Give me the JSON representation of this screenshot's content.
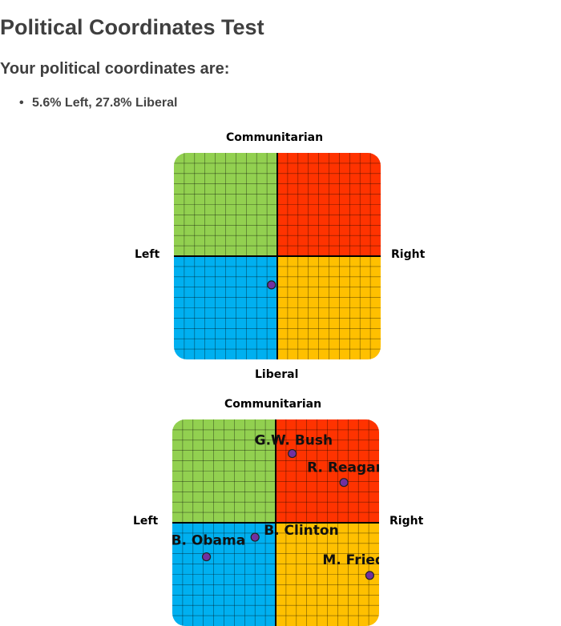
{
  "page": {
    "title": "Political Coordinates Test",
    "subtitle": "Your political coordinates are:",
    "result": "5.6% Left, 27.8% Liberal"
  },
  "axes": {
    "top": "Communitarian",
    "bottom": "Liberal",
    "left": "Left",
    "right": "Right"
  },
  "colors": {
    "top_left": "#92d050",
    "top_right": "#ff3300",
    "bottom_left": "#00b0f0",
    "bottom_right": "#ffc000",
    "point": "#7030a0"
  },
  "user_point": {
    "x_pct": -5.6,
    "y_pct": -27.8
  },
  "figures": [
    {
      "name": "G.W. Bush",
      "x_pct": 16,
      "y_pct": 67
    },
    {
      "name": "R. Reagan",
      "x_pct": 66,
      "y_pct": 39
    },
    {
      "name": "B. Clinton",
      "x_pct": -20,
      "y_pct": -14
    },
    {
      "name": "B. Obama",
      "x_pct": -67,
      "y_pct": -33
    },
    {
      "name": "M. Friedman",
      "x_pct": 91,
      "y_pct": -51
    }
  ]
}
